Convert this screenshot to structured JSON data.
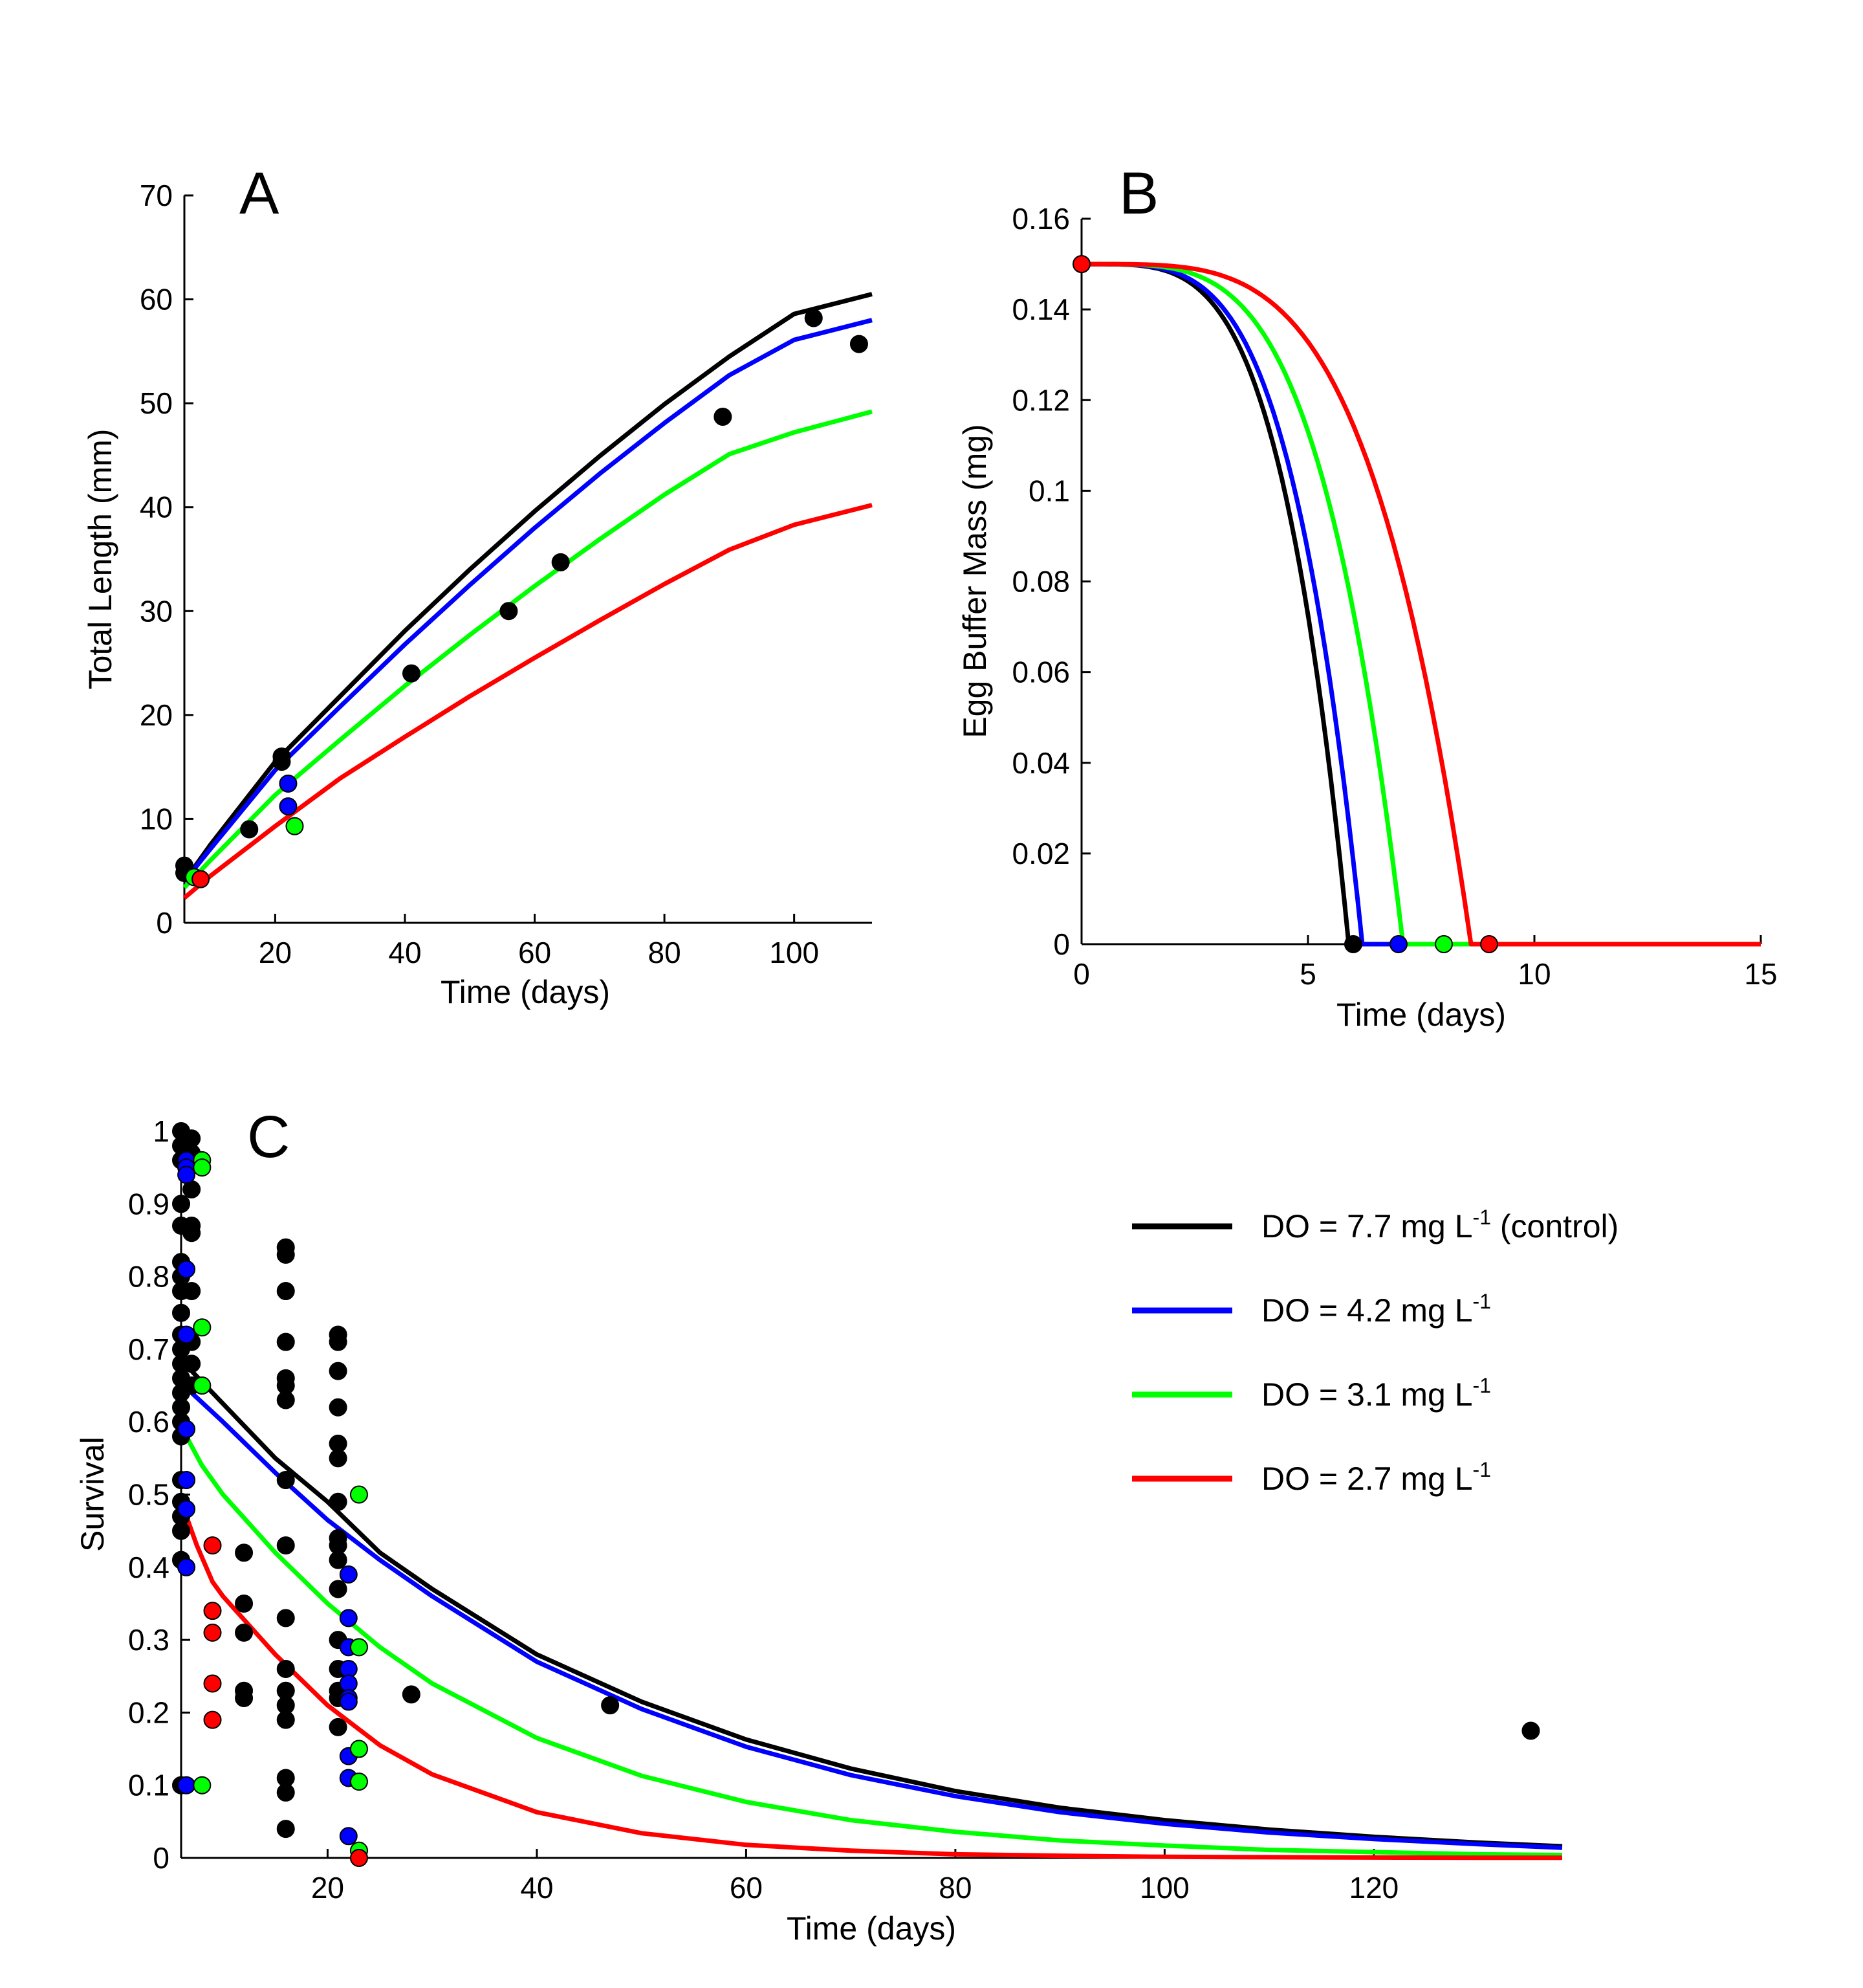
{
  "colors": {
    "control": "#000000",
    "do_4_2": "#0000ff",
    "do_3_1": "#00ff00",
    "do_2_7": "#ff0000"
  },
  "legend": {
    "items": [
      {
        "key": "control",
        "label": "DO = 7.7 mg L",
        "sup": "-1",
        "suffix": " (control)"
      },
      {
        "key": "do_4_2",
        "label": "DO = 4.2 mg L",
        "sup": "-1",
        "suffix": ""
      },
      {
        "key": "do_3_1",
        "label": "DO = 3.1 mg L",
        "sup": "-1",
        "suffix": ""
      },
      {
        "key": "do_2_7",
        "label": "DO = 2.7 mg L",
        "sup": "-1",
        "suffix": ""
      }
    ]
  },
  "chart_data": [
    {
      "panel": "A",
      "type": "line",
      "xlabel": "Time (days)",
      "ylabel": "Total Length (mm)",
      "xlim": [
        6,
        112
      ],
      "ylim": [
        0,
        70
      ],
      "xticks": [
        20,
        40,
        60,
        80,
        100
      ],
      "yticks": [
        0,
        10,
        20,
        30,
        40,
        50,
        60,
        70
      ],
      "grid": false,
      "series": [
        {
          "key": "control",
          "x": [
            6,
            10,
            20,
            30,
            40,
            50,
            60,
            70,
            80,
            90,
            100,
            112
          ],
          "y": [
            4.0,
            7.5,
            15.5,
            21.8,
            28.1,
            34.0,
            39.6,
            44.9,
            49.9,
            54.5,
            58.6,
            60.5
          ],
          "points": [
            [
              6,
              5.5
            ],
            [
              6,
              4.8
            ],
            [
              16,
              9
            ],
            [
              21,
              16
            ],
            [
              21,
              15.5
            ],
            [
              41,
              24
            ],
            [
              56,
              30
            ],
            [
              64,
              34.7
            ],
            [
              89,
              48.7
            ],
            [
              103,
              58.2
            ],
            [
              110,
              55.7
            ]
          ]
        },
        {
          "key": "do_4_2",
          "x": [
            6,
            10,
            20,
            30,
            40,
            50,
            60,
            70,
            80,
            90,
            100,
            112
          ],
          "y": [
            4.0,
            7.1,
            14.7,
            20.8,
            26.8,
            32.5,
            38.0,
            43.2,
            48.1,
            52.7,
            56.1,
            58.0
          ],
          "points": [
            [
              22,
              13.4
            ],
            [
              22,
              11.2
            ]
          ]
        },
        {
          "key": "do_3_1",
          "x": [
            6,
            10,
            20,
            30,
            40,
            50,
            60,
            70,
            80,
            90,
            100,
            112
          ],
          "y": [
            3.4,
            6.0,
            12.3,
            17.6,
            22.8,
            27.7,
            32.4,
            36.9,
            41.2,
            45.1,
            47.2,
            49.2
          ],
          "points": [
            [
              7.5,
              4.4
            ],
            [
              23,
              9.3
            ]
          ]
        },
        {
          "key": "do_2_7",
          "x": [
            6,
            10,
            20,
            30,
            40,
            50,
            60,
            70,
            80,
            90,
            100,
            112
          ],
          "y": [
            2.4,
            4.5,
            9.3,
            13.9,
            17.9,
            21.8,
            25.5,
            29.1,
            32.6,
            35.9,
            38.3,
            40.2
          ],
          "points": [
            [
              8.5,
              4.2
            ]
          ]
        }
      ]
    },
    {
      "panel": "B",
      "type": "line",
      "xlabel": "Time (days)",
      "ylabel": "Egg Buffer Mass (mg)",
      "xlim": [
        0,
        15
      ],
      "ylim": [
        0,
        0.16
      ],
      "xticks": [
        0,
        5,
        10,
        15
      ],
      "ytick_labels": [
        "0",
        "0.02",
        "0.04",
        "0.06",
        "0.08",
        "0.1",
        "0.12",
        "0.14",
        "0.16"
      ],
      "grid": false,
      "series": [
        {
          "key": "control",
          "end_day": 5.9,
          "points": [
            [
              6.0,
              0
            ]
          ]
        },
        {
          "key": "do_4_2",
          "end_day": 6.2,
          "points": [
            [
              7.0,
              0
            ]
          ]
        },
        {
          "key": "do_3_1",
          "end_day": 7.1,
          "points": [
            [
              8.0,
              0
            ]
          ]
        },
        {
          "key": "do_2_7",
          "end_day": 8.6,
          "points": [
            [
              0,
              0.15
            ],
            [
              9.0,
              0
            ]
          ]
        }
      ],
      "initial_mass": 0.15
    },
    {
      "panel": "C",
      "type": "line",
      "xlabel": "Time (days)",
      "ylabel": "Survival",
      "xlim": [
        6,
        138
      ],
      "ylim": [
        0,
        1
      ],
      "xticks": [
        20,
        40,
        60,
        80,
        100,
        120
      ],
      "ytick_labels": [
        "0",
        "0.1",
        "0.2",
        "0.3",
        "0.4",
        "0.5",
        "0.6",
        "0.7",
        "0.8",
        "0.9",
        "1"
      ],
      "grid": false,
      "legend_position": "top-right",
      "series": [
        {
          "key": "control",
          "x": [
            7,
            10,
            15,
            20,
            25,
            30,
            40,
            50,
            60,
            70,
            80,
            90,
            100,
            110,
            120,
            130,
            138
          ],
          "y": [
            0.67,
            0.625,
            0.55,
            0.49,
            0.42,
            0.37,
            0.28,
            0.215,
            0.163,
            0.123,
            0.092,
            0.069,
            0.052,
            0.039,
            0.029,
            0.021,
            0.016
          ],
          "points": [
            [
              6,
              1.0
            ],
            [
              6,
              0.98
            ],
            [
              6,
              0.96
            ],
            [
              6,
              0.9
            ],
            [
              6,
              0.87
            ],
            [
              6,
              0.82
            ],
            [
              6,
              0.8
            ],
            [
              6,
              0.78
            ],
            [
              6,
              0.75
            ],
            [
              6,
              0.72
            ],
            [
              6,
              0.7
            ],
            [
              6,
              0.68
            ],
            [
              6,
              0.66
            ],
            [
              6,
              0.64
            ],
            [
              6,
              0.62
            ],
            [
              6,
              0.6
            ],
            [
              6,
              0.58
            ],
            [
              6,
              0.52
            ],
            [
              6,
              0.49
            ],
            [
              6,
              0.47
            ],
            [
              6,
              0.45
            ],
            [
              6,
              0.41
            ],
            [
              6,
              0.1
            ],
            [
              7,
              0.99
            ],
            [
              7,
              0.97
            ],
            [
              7,
              0.92
            ],
            [
              7,
              0.87
            ],
            [
              7,
              0.86
            ],
            [
              7,
              0.78
            ],
            [
              7,
              0.71
            ],
            [
              7,
              0.68
            ],
            [
              7,
              0.65
            ],
            [
              12,
              0.42
            ],
            [
              12,
              0.35
            ],
            [
              12,
              0.31
            ],
            [
              12,
              0.23
            ],
            [
              12,
              0.22
            ],
            [
              16,
              0.84
            ],
            [
              16,
              0.83
            ],
            [
              16,
              0.78
            ],
            [
              16,
              0.71
            ],
            [
              16,
              0.66
            ],
            [
              16,
              0.65
            ],
            [
              16,
              0.63
            ],
            [
              16,
              0.52
            ],
            [
              16,
              0.43
            ],
            [
              16,
              0.33
            ],
            [
              16,
              0.26
            ],
            [
              16,
              0.23
            ],
            [
              16,
              0.21
            ],
            [
              16,
              0.19
            ],
            [
              16,
              0.11
            ],
            [
              16,
              0.09
            ],
            [
              16,
              0.04
            ],
            [
              21,
              0.72
            ],
            [
              21,
              0.71
            ],
            [
              21,
              0.67
            ],
            [
              21,
              0.62
            ],
            [
              21,
              0.57
            ],
            [
              21,
              0.55
            ],
            [
              21,
              0.49
            ],
            [
              21,
              0.44
            ],
            [
              21,
              0.43
            ],
            [
              21,
              0.41
            ],
            [
              21,
              0.37
            ],
            [
              21,
              0.3
            ],
            [
              21,
              0.26
            ],
            [
              21,
              0.23
            ],
            [
              21,
              0.22
            ],
            [
              21,
              0.18
            ],
            [
              28,
              0.225
            ],
            [
              47,
              0.21
            ],
            [
              135,
              0.175
            ]
          ]
        },
        {
          "key": "do_4_2",
          "x": [
            7,
            10,
            15,
            20,
            25,
            30,
            40,
            50,
            60,
            70,
            80,
            90,
            100,
            110,
            120,
            130,
            138
          ],
          "y": [
            0.64,
            0.6,
            0.53,
            0.465,
            0.41,
            0.36,
            0.27,
            0.205,
            0.153,
            0.114,
            0.085,
            0.063,
            0.047,
            0.035,
            0.026,
            0.019,
            0.014
          ],
          "points": [
            [
              6.5,
              0.96
            ],
            [
              6.5,
              0.95
            ],
            [
              6.5,
              0.94
            ],
            [
              6.5,
              0.81
            ],
            [
              6.5,
              0.72
            ],
            [
              6.5,
              0.59
            ],
            [
              6.5,
              0.52
            ],
            [
              6.5,
              0.48
            ],
            [
              6.5,
              0.4
            ],
            [
              6.5,
              0.1
            ],
            [
              22,
              0.39
            ],
            [
              22,
              0.33
            ],
            [
              22,
              0.29
            ],
            [
              22,
              0.26
            ],
            [
              22,
              0.24
            ],
            [
              22,
              0.22
            ],
            [
              22,
              0.215
            ],
            [
              22,
              0.14
            ],
            [
              22,
              0.11
            ],
            [
              22,
              0.03
            ]
          ]
        },
        {
          "key": "do_3_1",
          "x": [
            6.5,
            8,
            10,
            15,
            20,
            25,
            30,
            40,
            50,
            60,
            70,
            80,
            90,
            100,
            110,
            120,
            130,
            138
          ],
          "y": [
            0.58,
            0.54,
            0.5,
            0.42,
            0.35,
            0.29,
            0.24,
            0.165,
            0.113,
            0.077,
            0.052,
            0.036,
            0.024,
            0.017,
            0.011,
            0.008,
            0.005,
            0.004
          ],
          "points": [
            [
              8,
              0.96
            ],
            [
              8,
              0.95
            ],
            [
              8,
              0.73
            ],
            [
              8,
              0.65
            ],
            [
              8,
              0.1
            ],
            [
              23,
              0.5
            ],
            [
              23,
              0.29
            ],
            [
              23,
              0.15
            ],
            [
              23,
              0.105
            ],
            [
              23,
              0.01
            ]
          ]
        },
        {
          "key": "do_2_7",
          "x": [
            6.5,
            7.5,
            9,
            10,
            15,
            20,
            25,
            30,
            40,
            50,
            60,
            70,
            80,
            90,
            100,
            110,
            120,
            130,
            138
          ],
          "y": [
            0.47,
            0.43,
            0.38,
            0.36,
            0.28,
            0.21,
            0.155,
            0.115,
            0.063,
            0.034,
            0.018,
            0.01,
            0.005,
            0.003,
            0.0015,
            0.001,
            0.0005,
            0.0003,
            0.0002
          ],
          "points": [
            [
              9,
              0.43
            ],
            [
              9,
              0.34
            ],
            [
              9,
              0.31
            ],
            [
              9,
              0.24
            ],
            [
              9,
              0.19
            ],
            [
              23,
              0.0
            ]
          ]
        }
      ]
    }
  ]
}
